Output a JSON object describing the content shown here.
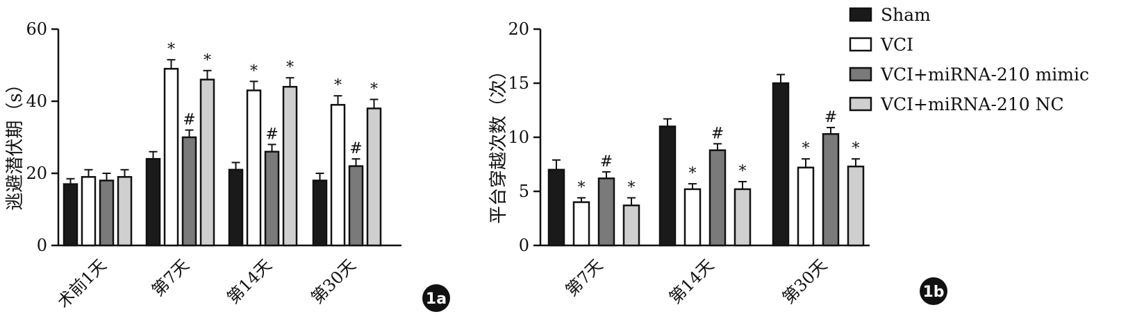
{
  "colors": {
    "Sham": "#1a1a1a",
    "VCI": "#ffffff",
    "VCI+miRNA-210 mimic": "#7a7a7a",
    "VCI+miRNA-210 NC": "#cfcfcf",
    "outline": "#111111"
  },
  "legend": {
    "entries": [
      "Sham",
      "VCI",
      "VCI+miRNA-210 mimic",
      "VCI+miRNA-210 NC"
    ]
  },
  "chart_data": [
    {
      "type": "bar",
      "panel_label": "1a",
      "ylabel": "逃避潜伏期（s）",
      "xlabel": "",
      "ylim": [
        0,
        60
      ],
      "yticks": [
        "0",
        "20",
        "40",
        "60"
      ],
      "categories": [
        "术前1天",
        "第7天",
        "第14天",
        "第30天"
      ],
      "series": [
        {
          "name": "Sham",
          "values": [
            17,
            24,
            21,
            18
          ],
          "errors": [
            1.5,
            2,
            2,
            2
          ]
        },
        {
          "name": "VCI",
          "values": [
            19,
            49,
            43,
            39
          ],
          "errors": [
            2,
            2.5,
            2.5,
            2.5
          ]
        },
        {
          "name": "VCI+miRNA-210 mimic",
          "values": [
            18,
            30,
            26,
            22
          ],
          "errors": [
            2,
            2,
            2,
            2
          ]
        },
        {
          "name": "VCI+miRNA-210 NC",
          "values": [
            19,
            46,
            44,
            38
          ],
          "errors": [
            2,
            2.5,
            2.5,
            2.5
          ]
        }
      ],
      "marks": [
        [
          "",
          "",
          "",
          ""
        ],
        [
          "",
          "*",
          "#",
          "*"
        ],
        [
          "",
          "*",
          "#",
          "*"
        ],
        [
          "",
          "*",
          "#",
          "*"
        ]
      ]
    },
    {
      "type": "bar",
      "panel_label": "1b",
      "ylabel": "平台穿越次数（次）",
      "xlabel": "",
      "ylim": [
        0,
        20
      ],
      "yticks": [
        "0",
        "5",
        "10",
        "15",
        "20"
      ],
      "categories": [
        "第7天",
        "第14天",
        "第30天"
      ],
      "series": [
        {
          "name": "Sham",
          "values": [
            7,
            11,
            15
          ],
          "errors": [
            0.9,
            0.7,
            0.8
          ]
        },
        {
          "name": "VCI",
          "values": [
            4,
            5.2,
            7.2
          ],
          "errors": [
            0.4,
            0.5,
            0.8
          ]
        },
        {
          "name": "VCI+miRNA-210 mimic",
          "values": [
            6.2,
            8.8,
            10.3
          ],
          "errors": [
            0.6,
            0.6,
            0.6
          ]
        },
        {
          "name": "VCI+miRNA-210 NC",
          "values": [
            3.7,
            5.2,
            7.3
          ],
          "errors": [
            0.7,
            0.7,
            0.7
          ]
        }
      ],
      "marks": [
        [
          "",
          "*",
          "#",
          "*"
        ],
        [
          "",
          "*",
          "#",
          "*"
        ],
        [
          "",
          "*",
          "#",
          "*"
        ]
      ]
    }
  ]
}
